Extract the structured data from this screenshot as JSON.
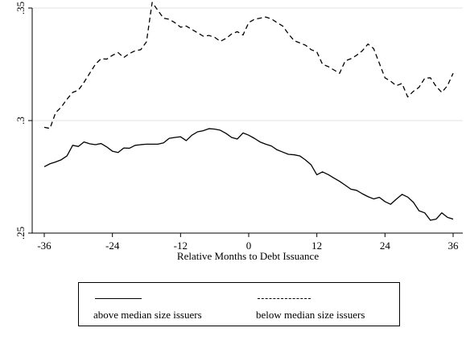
{
  "chart_data": {
    "type": "line",
    "title": "",
    "xlabel": "Relative Months to Debt Issuance",
    "ylabel": "",
    "xlim": [
      -36,
      36
    ],
    "ylim": [
      0.25,
      0.35
    ],
    "x_ticks": [
      -36,
      -24,
      -12,
      0,
      12,
      24,
      36
    ],
    "x_tick_labels": [
      "-36",
      "-24",
      "-12",
      "0",
      "12",
      "24",
      "36"
    ],
    "y_ticks": [
      0.25,
      0.3,
      0.35
    ],
    "y_tick_labels": [
      ".25",
      ".3",
      ".35"
    ],
    "grid": "horizontal",
    "legend_position": "bottom",
    "x": [
      -36,
      -35,
      -34,
      -33,
      -32,
      -31,
      -30,
      -29,
      -28,
      -27,
      -26,
      -25,
      -24,
      -23,
      -22,
      -21,
      -20,
      -19,
      -18,
      -17,
      -16,
      -15,
      -14,
      -13,
      -12,
      -11,
      -10,
      -9,
      -8,
      -7,
      -6,
      -5,
      -4,
      -3,
      -2,
      -1,
      0,
      1,
      2,
      3,
      4,
      5,
      6,
      7,
      8,
      9,
      10,
      11,
      12,
      13,
      14,
      15,
      16,
      17,
      18,
      19,
      20,
      21,
      22,
      23,
      24,
      25,
      26,
      27,
      28,
      29,
      30,
      31,
      32,
      33,
      34,
      35,
      36
    ],
    "series": [
      {
        "name": "above median size issuers",
        "style": "solid",
        "values": [
          0.2795,
          0.2808,
          0.2816,
          0.2826,
          0.2843,
          0.289,
          0.2885,
          0.2905,
          0.2897,
          0.2893,
          0.2898,
          0.2883,
          0.2864,
          0.2858,
          0.2878,
          0.2877,
          0.289,
          0.2893,
          0.2895,
          0.2895,
          0.2895,
          0.2901,
          0.2921,
          0.2925,
          0.2928,
          0.2911,
          0.2935,
          0.295,
          0.2955,
          0.2964,
          0.2962,
          0.2957,
          0.2943,
          0.2925,
          0.2918,
          0.2945,
          0.2935,
          0.2921,
          0.2905,
          0.2895,
          0.2887,
          0.287,
          0.286,
          0.285,
          0.2848,
          0.2843,
          0.2825,
          0.2803,
          0.2759,
          0.2772,
          0.276,
          0.2745,
          0.273,
          0.2713,
          0.2695,
          0.269,
          0.2675,
          0.2662,
          0.2652,
          0.2659,
          0.264,
          0.2628,
          0.2651,
          0.2672,
          0.266,
          0.2637,
          0.2599,
          0.259,
          0.2557,
          0.2562,
          0.259,
          0.257,
          0.2562
        ]
      },
      {
        "name": "below median size issuers",
        "style": "dashed",
        "values": [
          0.297,
          0.2965,
          0.3035,
          0.306,
          0.3095,
          0.3125,
          0.3135,
          0.317,
          0.321,
          0.325,
          0.3275,
          0.3273,
          0.329,
          0.3302,
          0.328,
          0.3298,
          0.331,
          0.3315,
          0.335,
          0.3525,
          0.349,
          0.3455,
          0.345,
          0.3435,
          0.3415,
          0.342,
          0.3405,
          0.339,
          0.3375,
          0.3378,
          0.337,
          0.3352,
          0.3365,
          0.3385,
          0.3395,
          0.338,
          0.3435,
          0.345,
          0.3455,
          0.346,
          0.3452,
          0.3435,
          0.342,
          0.3385,
          0.3355,
          0.3345,
          0.3335,
          0.3315,
          0.3305,
          0.325,
          0.324,
          0.3225,
          0.321,
          0.3265,
          0.3275,
          0.329,
          0.331,
          0.334,
          0.332,
          0.3255,
          0.319,
          0.3175,
          0.3155,
          0.3165,
          0.3105,
          0.313,
          0.3148,
          0.3188,
          0.319,
          0.3152,
          0.3125,
          0.3155,
          0.321
        ]
      }
    ]
  }
}
